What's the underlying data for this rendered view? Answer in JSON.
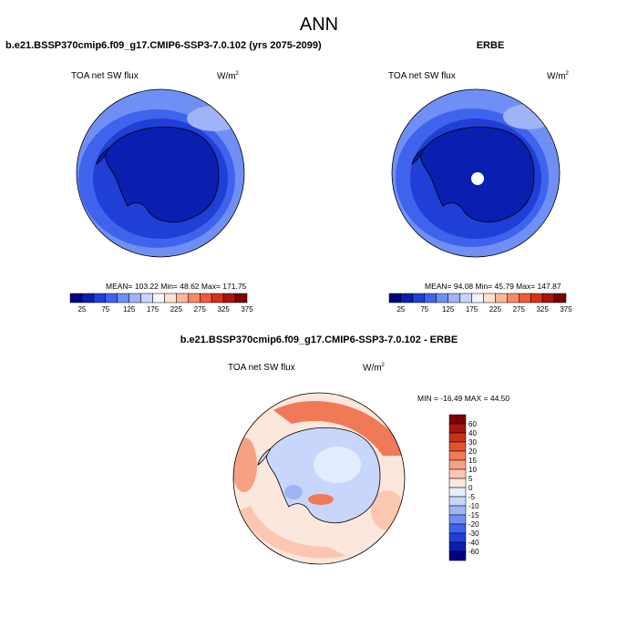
{
  "season": "ANN",
  "palette": {
    "abs_colors": [
      "#00007f",
      "#0a1fb0",
      "#1f3fd6",
      "#3f63ec",
      "#6f8ff5",
      "#9fb4f7",
      "#c8d6fb",
      "#f3f5ff",
      "#fde1d4",
      "#fbb79c",
      "#f78a66",
      "#ef5a38",
      "#d8311b",
      "#a9140c",
      "#7a0000"
    ],
    "abs_ticks": [
      "25",
      "75",
      "125",
      "175",
      "225",
      "275",
      "325",
      "375"
    ],
    "diff_colors": [
      "#00007f",
      "#0a1fb0",
      "#1f3fd6",
      "#3f63ec",
      "#6f8ff5",
      "#9fb4f7",
      "#c8d6fb",
      "#e4ecff",
      "#fbe7dc",
      "#fbc7b0",
      "#f7a184",
      "#f07a58",
      "#e4512f",
      "#c8311a",
      "#a9140c",
      "#7a0000"
    ],
    "diff_ticks": [
      "60",
      "40",
      "30",
      "20",
      "15",
      "10",
      "5",
      "0",
      "-5",
      "-10",
      "-15",
      "-20",
      "-30",
      "-40",
      "-60"
    ]
  },
  "panels": {
    "left": {
      "case_title": "b.e21.BSSP370cmip6.f09_g17.CMIP6-SSP3-7.0.102 (yrs 2075-2099)",
      "variable": "TOA net SW flux",
      "units": "W/m",
      "units_sup": "2",
      "stats": "MEAN= 103.22  Min=  48.62  Max= 171.75"
    },
    "right": {
      "case_title": "ERBE",
      "variable": "TOA net SW flux",
      "units": "W/m",
      "units_sup": "2",
      "stats": "MEAN=  94.08  Min=  45.79  Max= 147.87"
    },
    "diff": {
      "case_title": "b.e21.BSSP370cmip6.f09_g17.CMIP6-SSP3-7.0.102 - ERBE",
      "variable": "TOA net SW flux",
      "units": "W/m",
      "units_sup": "2",
      "stats": "MIN = -16.49 MAX =  44.50"
    }
  }
}
